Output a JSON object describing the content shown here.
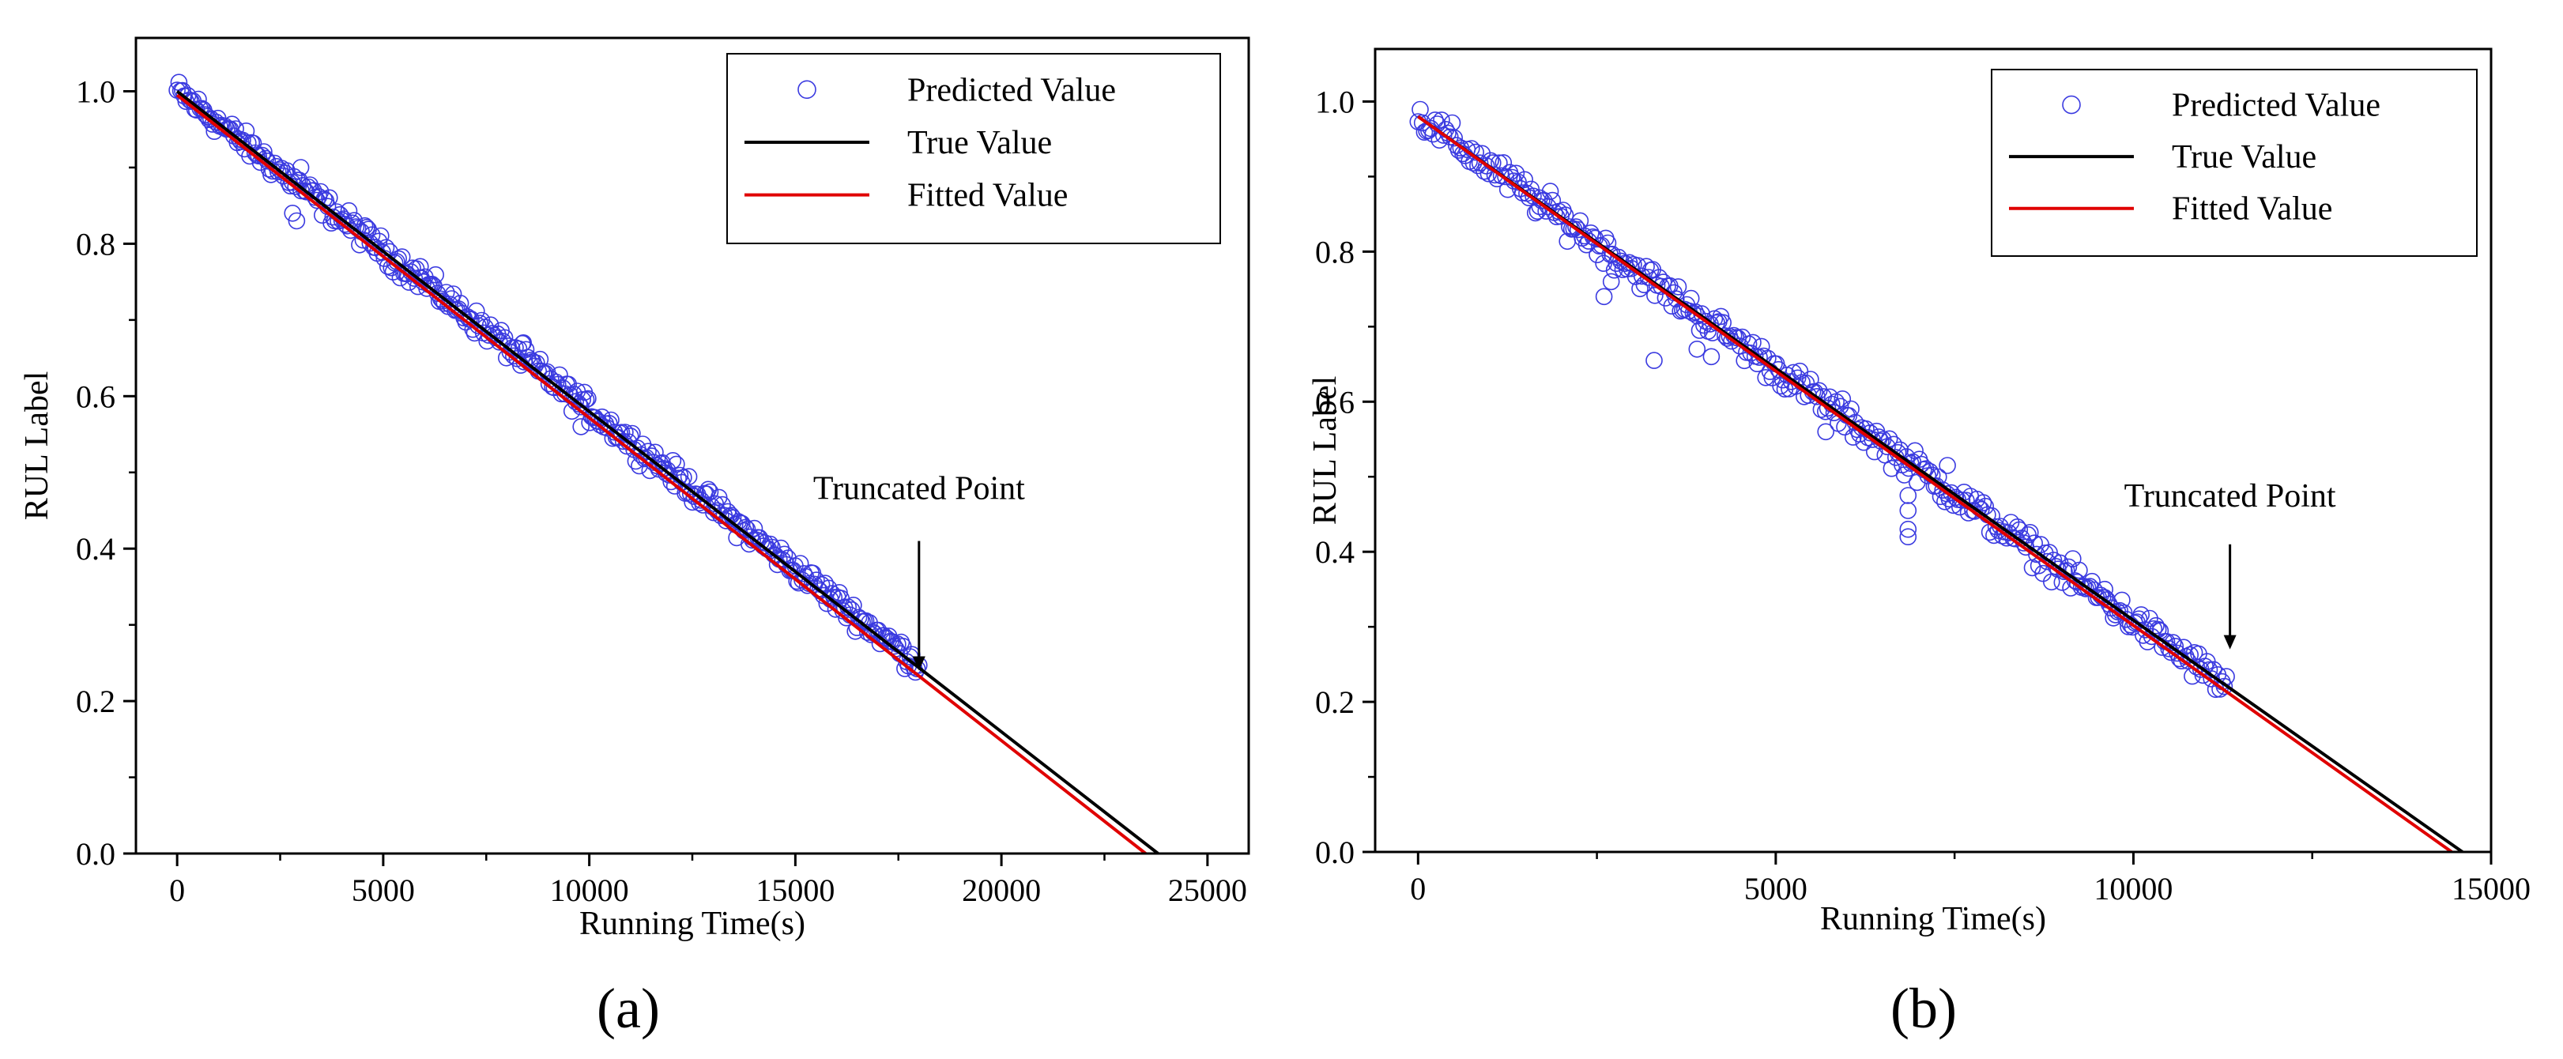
{
  "colors": {
    "predicted": "#3a3ae0",
    "true_line": "#000000",
    "fitted_line": "#e00000",
    "axis": "#000000",
    "background": "#ffffff"
  },
  "chart_data": [
    {
      "type": "scatter",
      "panel_label": "(a)",
      "xlabel": "Running Time(s)",
      "ylabel": "RUL Label",
      "xlim": [
        -1000,
        26000
      ],
      "ylim": [
        0,
        1.07
      ],
      "x_ticks": [
        0,
        5000,
        10000,
        15000,
        20000,
        25000
      ],
      "x_tick_labels": [
        "0",
        "5000",
        "10000",
        "15000",
        "20000",
        "25000"
      ],
      "y_ticks": [
        0.0,
        0.2,
        0.4,
        0.6,
        0.8,
        1.0
      ],
      "y_tick_labels": [
        "0.0",
        "0.2",
        "0.4",
        "0.6",
        "0.8",
        "1.0"
      ],
      "legend": {
        "position": "top-right",
        "entries": [
          "Predicted Value",
          "True Value",
          "Fitted Value"
        ]
      },
      "series": [
        {
          "name": "Predicted Value",
          "kind": "points",
          "x_start": 0,
          "x_end": 18000,
          "count": 420,
          "y_start": 1.0,
          "slope_per_s": -4.18e-05,
          "noise": 0.008,
          "outliers": [
            [
              2900,
              0.83
            ],
            [
              2800,
              0.84
            ],
            [
              3000,
              0.9
            ],
            [
              9800,
              0.56
            ],
            [
              5900,
              0.77
            ],
            [
              8400,
              0.67
            ]
          ]
        },
        {
          "name": "True Value",
          "kind": "line",
          "x": [
            0,
            23800
          ],
          "y": [
            1.0,
            0.0
          ]
        },
        {
          "name": "Fitted Value",
          "kind": "line",
          "x": [
            0,
            23500
          ],
          "y": [
            0.995,
            0.0
          ]
        }
      ],
      "annotations": [
        {
          "text": "Truncated Point",
          "arrow_to": [
            18000,
            0.24
          ],
          "arrow_from": [
            18000,
            0.41
          ],
          "label_at": [
            18000,
            0.465
          ]
        }
      ]
    },
    {
      "type": "scatter",
      "panel_label": "(b)",
      "xlabel": "Running Time(s)",
      "ylabel": "RUL Label",
      "xlim": [
        -600,
        15000
      ],
      "ylim": [
        0,
        1.07
      ],
      "x_ticks": [
        0,
        5000,
        10000,
        15000
      ],
      "x_tick_labels": [
        "0",
        "5000",
        "10000",
        "15000"
      ],
      "y_ticks": [
        0.0,
        0.2,
        0.4,
        0.6,
        0.8,
        1.0
      ],
      "y_tick_labels": [
        "0.0",
        "0.2",
        "0.4",
        "0.6",
        "0.8",
        "1.0"
      ],
      "legend": {
        "position": "top-right",
        "entries": [
          "Predicted Value",
          "True Value",
          "Fitted Value"
        ]
      },
      "series": [
        {
          "name": "Predicted Value",
          "kind": "points",
          "x_start": 0,
          "x_end": 11300,
          "count": 380,
          "y_start": 0.98,
          "slope_per_s": -6.72e-05,
          "noise": 0.01,
          "outliers": [
            [
              3300,
              0.655
            ],
            [
              6850,
              0.42
            ],
            [
              6850,
              0.43
            ],
            [
              6850,
              0.455
            ],
            [
              6850,
              0.475
            ],
            [
              2600,
              0.74
            ],
            [
              2700,
              0.76
            ],
            [
              3900,
              0.67
            ],
            [
              4100,
              0.66
            ],
            [
              7400,
              0.515
            ],
            [
              9600,
              0.35
            ],
            [
              1700,
              0.86
            ],
            [
              5700,
              0.56
            ]
          ]
        },
        {
          "name": "True Value",
          "kind": "line",
          "x": [
            0,
            14600
          ],
          "y": [
            0.98,
            0.0
          ]
        },
        {
          "name": "Fitted Value",
          "kind": "line",
          "x": [
            0,
            14450
          ],
          "y": [
            0.98,
            0.0
          ]
        }
      ],
      "annotations": [
        {
          "text": "Truncated Point",
          "arrow_to": [
            11350,
            0.27
          ],
          "arrow_from": [
            11350,
            0.41
          ],
          "label_at": [
            11350,
            0.46
          ]
        }
      ]
    }
  ]
}
